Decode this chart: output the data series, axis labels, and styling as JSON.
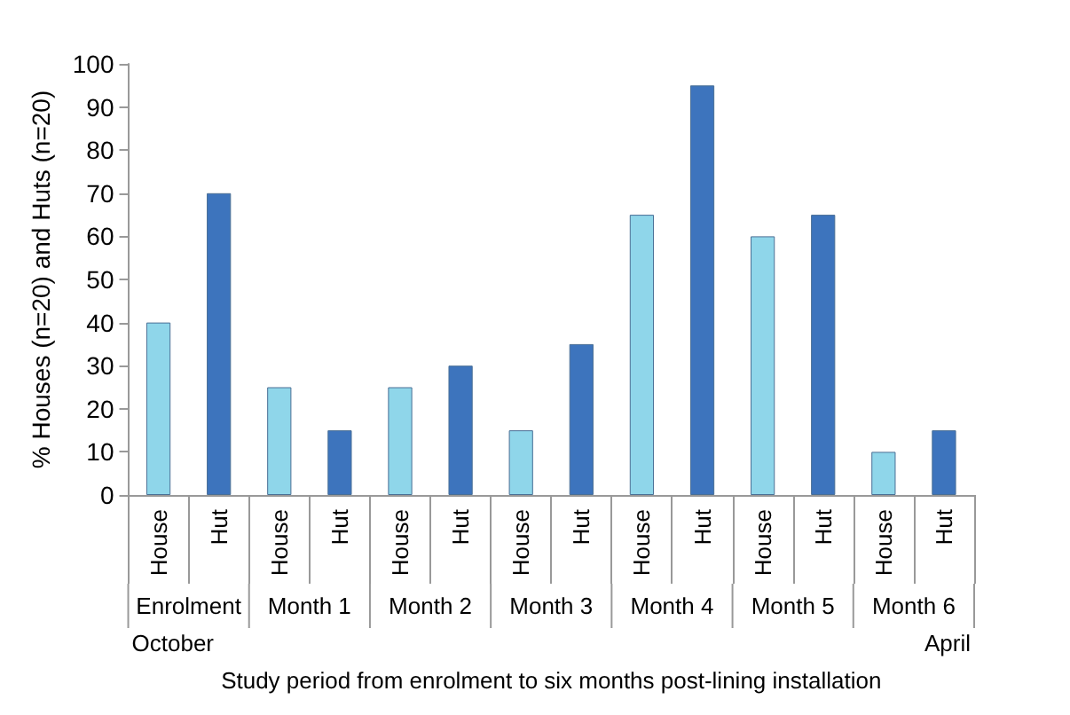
{
  "chart_data": {
    "type": "bar",
    "ylabel": "% Houses (n=20) and Huts (n=20)",
    "xlabel": "Study period from enrolment to six months post-lining installation",
    "categories": [
      "House",
      "Hut",
      "House",
      "Hut",
      "House",
      "Hut",
      "House",
      "Hut",
      "House",
      "Hut",
      "House",
      "Hut",
      "House",
      "Hut"
    ],
    "values": [
      40,
      70,
      25,
      15,
      25,
      30,
      15,
      35,
      65,
      95,
      60,
      65,
      10,
      15
    ],
    "colors": [
      "#8fd6ea",
      "#3d74bd",
      "#8fd6ea",
      "#3d74bd",
      "#8fd6ea",
      "#3d74bd",
      "#8fd6ea",
      "#3d74bd",
      "#8fd6ea",
      "#3d74bd",
      "#8fd6ea",
      "#3d74bd",
      "#8fd6ea",
      "#3d74bd"
    ],
    "ylim": [
      0,
      100
    ],
    "yticks": [
      0,
      10,
      20,
      30,
      40,
      50,
      60,
      70,
      80,
      90,
      100
    ],
    "grid": false,
    "annotations": [
      "Enrolment",
      "Month 1",
      "Month 2",
      "Month 3",
      "Month 4",
      "Month 5",
      "Month 6",
      "October",
      "April"
    ]
  }
}
